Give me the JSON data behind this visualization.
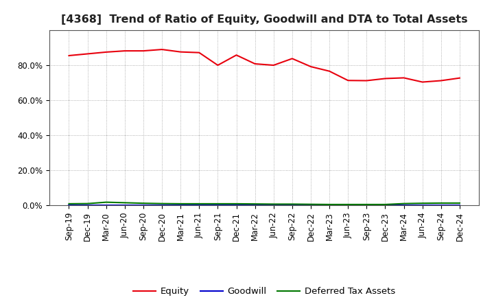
{
  "title": "[4368]  Trend of Ratio of Equity, Goodwill and DTA to Total Assets",
  "x_labels": [
    "Sep-19",
    "Dec-19",
    "Mar-20",
    "Jun-20",
    "Sep-20",
    "Dec-20",
    "Mar-21",
    "Jun-21",
    "Sep-21",
    "Dec-21",
    "Mar-22",
    "Jun-22",
    "Sep-22",
    "Dec-22",
    "Mar-23",
    "Jun-23",
    "Sep-23",
    "Dec-23",
    "Mar-24",
    "Jun-24",
    "Sep-24",
    "Dec-24"
  ],
  "equity": [
    0.855,
    0.865,
    0.875,
    0.882,
    0.882,
    0.89,
    0.876,
    0.872,
    0.8,
    0.858,
    0.808,
    0.8,
    0.838,
    0.792,
    0.766,
    0.713,
    0.712,
    0.724,
    0.728,
    0.704,
    0.712,
    0.727
  ],
  "goodwill": [
    0.0,
    0.0,
    0.0,
    0.0,
    0.0,
    0.0,
    0.0,
    0.0,
    0.0,
    0.0,
    0.0,
    0.0,
    0.0,
    0.0,
    0.0,
    0.0,
    0.0,
    0.0,
    0.0,
    0.0,
    0.0,
    0.0
  ],
  "dta": [
    0.009,
    0.01,
    0.018,
    0.015,
    0.012,
    0.01,
    0.009,
    0.009,
    0.009,
    0.009,
    0.008,
    0.007,
    0.007,
    0.006,
    0.005,
    0.005,
    0.005,
    0.005,
    0.01,
    0.012,
    0.013,
    0.013
  ],
  "equity_color": "#e8000d",
  "goodwill_color": "#0000cc",
  "dta_color": "#007700",
  "background_color": "#ffffff",
  "plot_bg_color": "#ffffff",
  "grid_color": "#999999",
  "ylim": [
    0.0,
    1.0
  ],
  "yticks": [
    0.0,
    0.2,
    0.4,
    0.6,
    0.8
  ],
  "legend_labels": [
    "Equity",
    "Goodwill",
    "Deferred Tax Assets"
  ],
  "title_fontsize": 11.5,
  "tick_fontsize": 8.5,
  "legend_fontsize": 9.5
}
